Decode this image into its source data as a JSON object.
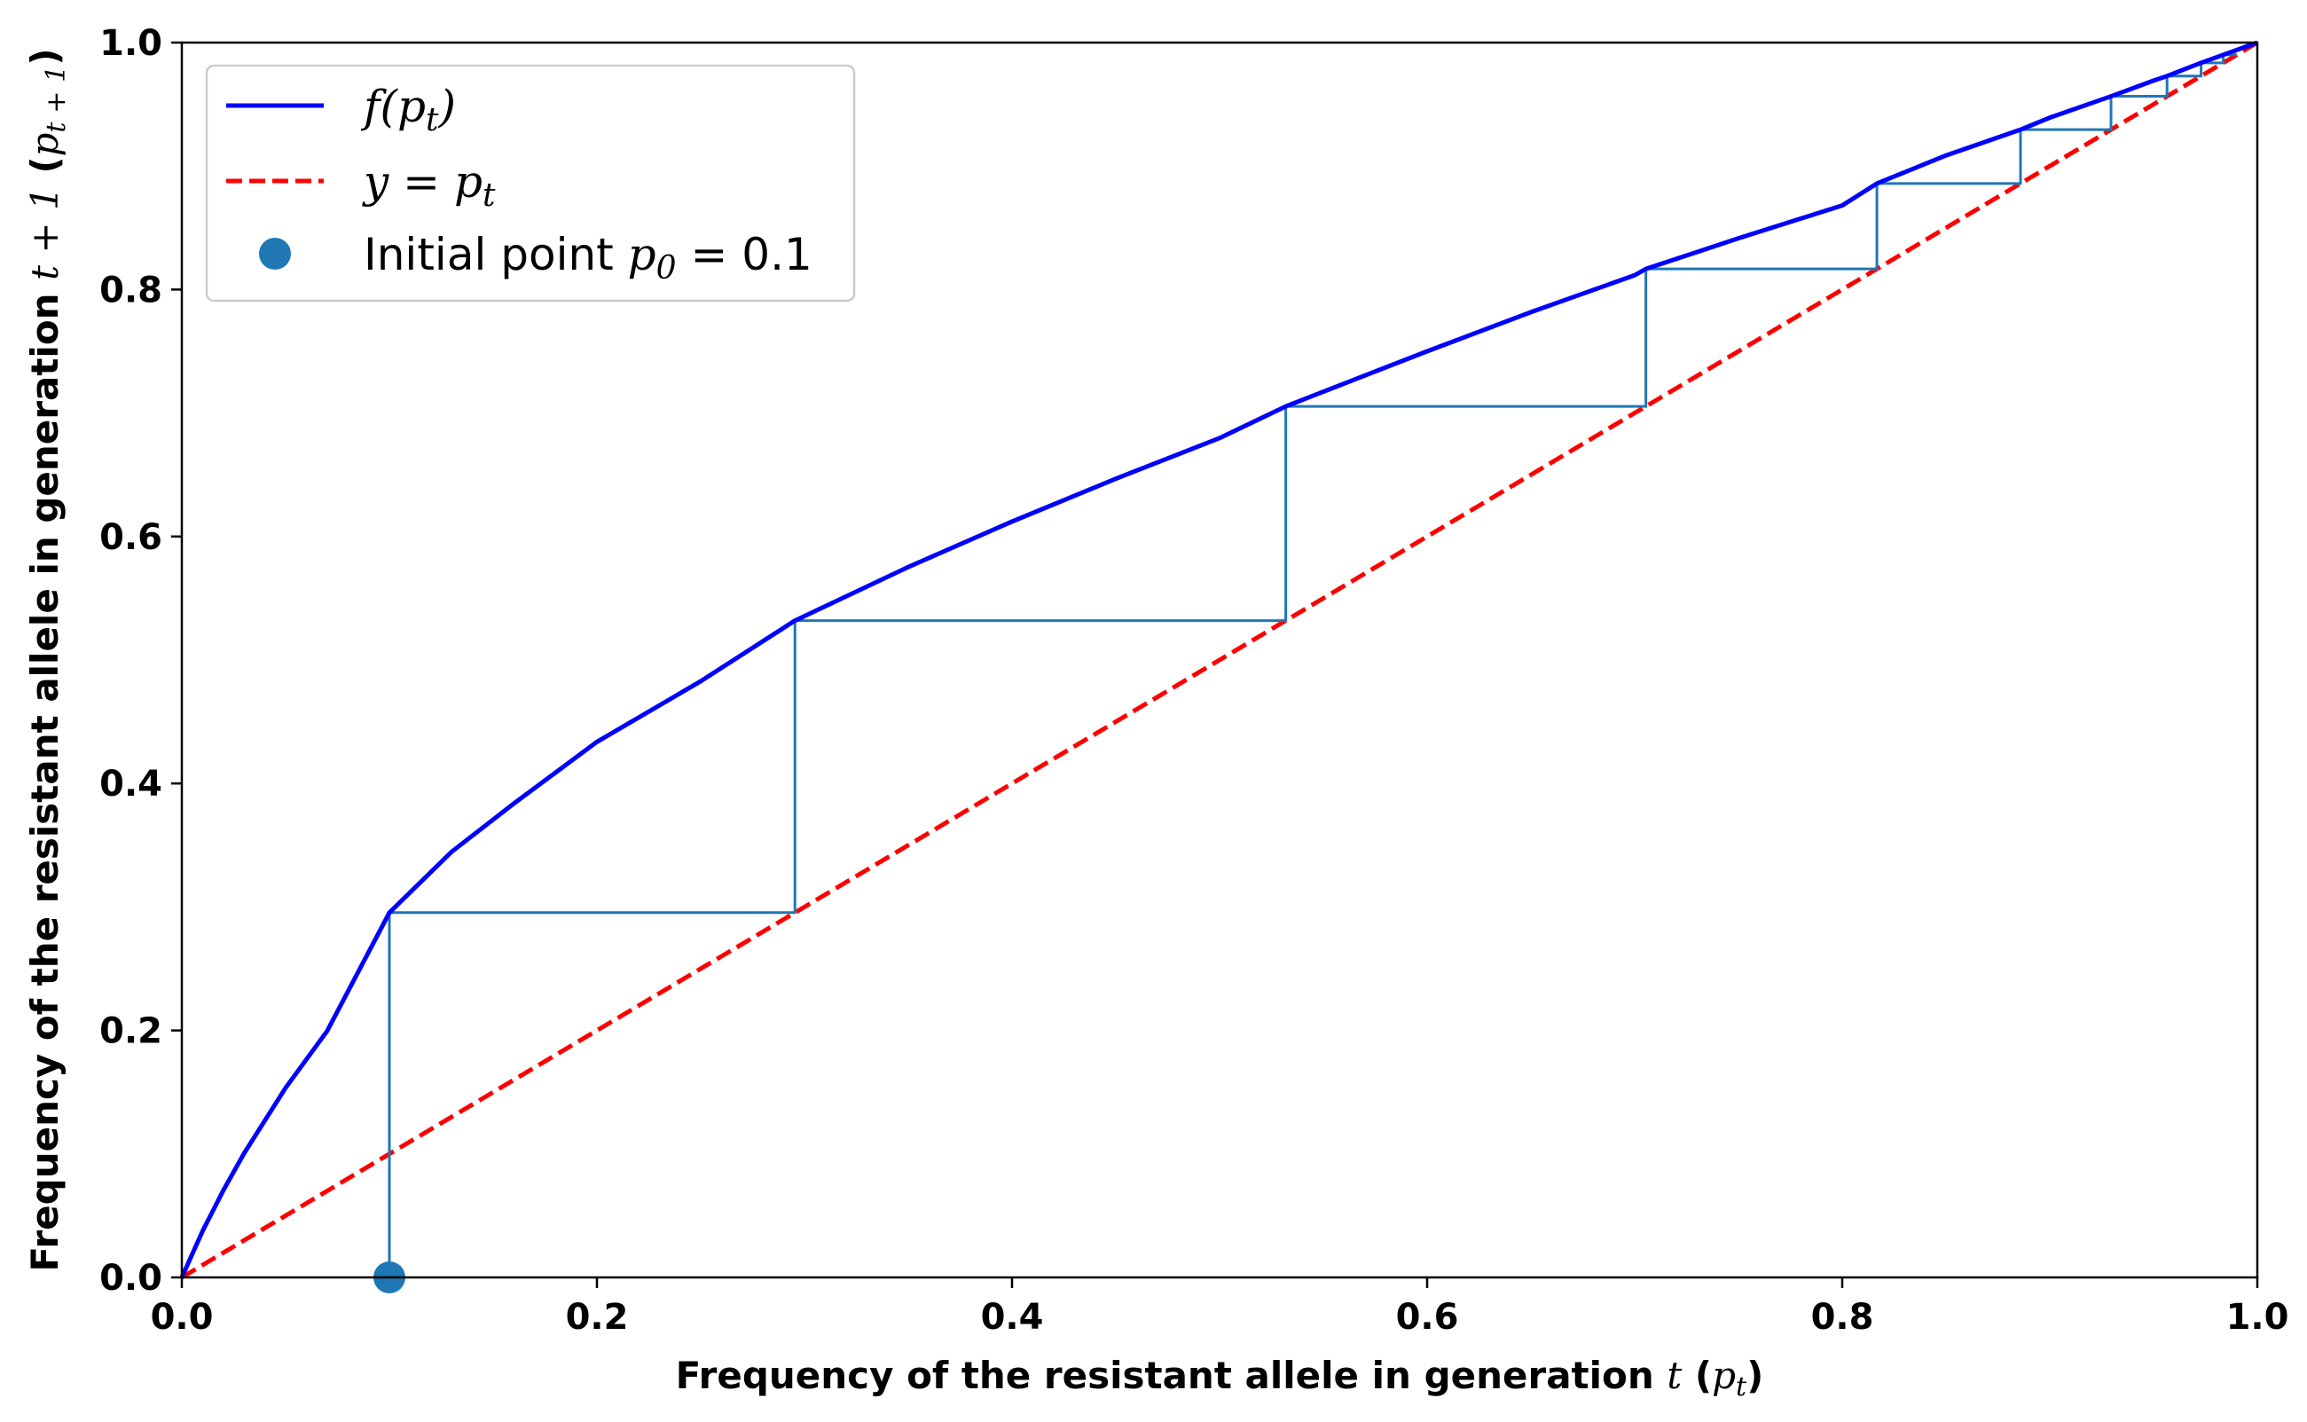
{
  "chart_data": {
    "type": "line",
    "title": "",
    "xlabel": {
      "prefix": "Frequency of the resistant allele in generation ",
      "var": "t",
      "open": " (",
      "p": "p",
      "sub": "t",
      "close": ")"
    },
    "ylabel": {
      "prefix": "Frequency of the resistant allele in generation ",
      "var": "t",
      "plus": " + 1",
      "open": " (",
      "p": "p",
      "sub": "t + 1",
      "close": ")"
    },
    "xlim": [
      0.0,
      1.0
    ],
    "ylim": [
      0.0,
      1.0
    ],
    "xticks": [
      "0.0",
      "0.2",
      "0.4",
      "0.6",
      "0.8",
      "1.0"
    ],
    "yticks": [
      "0.0",
      "0.2",
      "0.4",
      "0.6",
      "0.8",
      "1.0"
    ],
    "grid": false,
    "legend_position": "top-left",
    "legend": [
      {
        "kind": "line",
        "color": "#0000ff",
        "dash": false,
        "text_pre": "f(",
        "text_p": "p",
        "text_sub": "t",
        "text_post": ")"
      },
      {
        "kind": "line",
        "color": "#ff0000",
        "dash": true,
        "text_pre": "y = ",
        "text_p": "p",
        "text_sub": "t",
        "text_post": ""
      },
      {
        "kind": "marker",
        "color": "#1f77b4",
        "text_pre": "Initial point ",
        "text_p": "p",
        "text_sub": "0",
        "text_post": " = 0.1"
      }
    ],
    "series": [
      {
        "name": "f(p_t)",
        "color": "#0000ff",
        "style": "solid",
        "x": [
          0.0,
          0.01,
          0.02,
          0.03,
          0.05,
          0.07,
          0.1,
          0.13,
          0.16,
          0.2,
          0.25,
          0.2954,
          0.35,
          0.4,
          0.45,
          0.5,
          0.5319,
          0.6,
          0.65,
          0.7,
          0.7054,
          0.75,
          0.8,
          0.8167,
          0.85,
          0.8859,
          0.9,
          0.9295,
          0.95,
          0.9565,
          0.9729,
          1.0
        ],
        "y": [
          0.0,
          0.0375,
          0.0705,
          0.1005,
          0.1535,
          0.1995,
          0.2954,
          0.3447,
          0.3838,
          0.4337,
          0.4828,
          0.5319,
          0.5753,
          0.6121,
          0.6468,
          0.6797,
          0.7054,
          0.75,
          0.7817,
          0.8116,
          0.8167,
          0.8415,
          0.8681,
          0.8859,
          0.9086,
          0.9295,
          0.9392,
          0.9565,
          0.9692,
          0.9729,
          0.9836,
          1.0
        ]
      },
      {
        "name": "y = p_t",
        "color": "#ff0000",
        "style": "dashed",
        "x": [
          0.0,
          1.0
        ],
        "y": [
          0.0,
          1.0
        ]
      },
      {
        "name": "Initial point p_0 = 0.1",
        "color": "#1f77b4",
        "style": "marker",
        "x": [
          0.1
        ],
        "y": [
          0.0
        ]
      },
      {
        "name": "cobweb",
        "color": "#1f77b4",
        "style": "steps",
        "x": [
          0.1,
          0.1,
          0.2954,
          0.2954,
          0.5319,
          0.5319,
          0.7054,
          0.7054,
          0.8167,
          0.8167,
          0.8859,
          0.8859,
          0.9295,
          0.9295,
          0.9565,
          0.9565,
          0.9729,
          0.9729,
          0.9836,
          0.9836,
          0.99
        ],
        "y": [
          0.0,
          0.2954,
          0.2954,
          0.5319,
          0.5319,
          0.7054,
          0.7054,
          0.8167,
          0.8167,
          0.8859,
          0.8859,
          0.9295,
          0.9295,
          0.9565,
          0.9565,
          0.9729,
          0.9729,
          0.9836,
          0.9836,
          0.99,
          0.99
        ]
      }
    ]
  }
}
